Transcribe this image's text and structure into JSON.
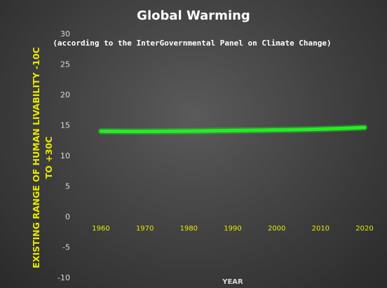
{
  "chart_data": {
    "type": "line",
    "title": "Global  Warming",
    "subtitle": "(according  to the InterGovernmental  Panel on Climate Change)",
    "ylabel_line1": "EXISTING RANGE OF HUMAN LIVABILITY -10C",
    "ylabel_line2": "TO +30C",
    "xlabel": "YEAR",
    "ylim": [
      -10,
      30
    ],
    "yticks": [
      "30",
      "25",
      "20",
      "15",
      "10",
      "5",
      "0",
      "-5",
      "-10"
    ],
    "xticks": [
      "1960",
      "1970",
      "1980",
      "1990",
      "2000",
      "2010",
      "2020"
    ],
    "xlim": [
      1960,
      2020
    ],
    "grid": false,
    "legend": "none",
    "series": [
      {
        "color": "#22ee22",
        "x": [
          1960,
          1965,
          1970,
          1975,
          1980,
          1985,
          1990,
          1995,
          2000,
          2005,
          2010,
          2015,
          2020
        ],
        "y": [
          14.0,
          13.95,
          13.95,
          13.97,
          14.0,
          14.05,
          14.1,
          14.15,
          14.2,
          14.25,
          14.35,
          14.45,
          14.6
        ]
      }
    ]
  }
}
